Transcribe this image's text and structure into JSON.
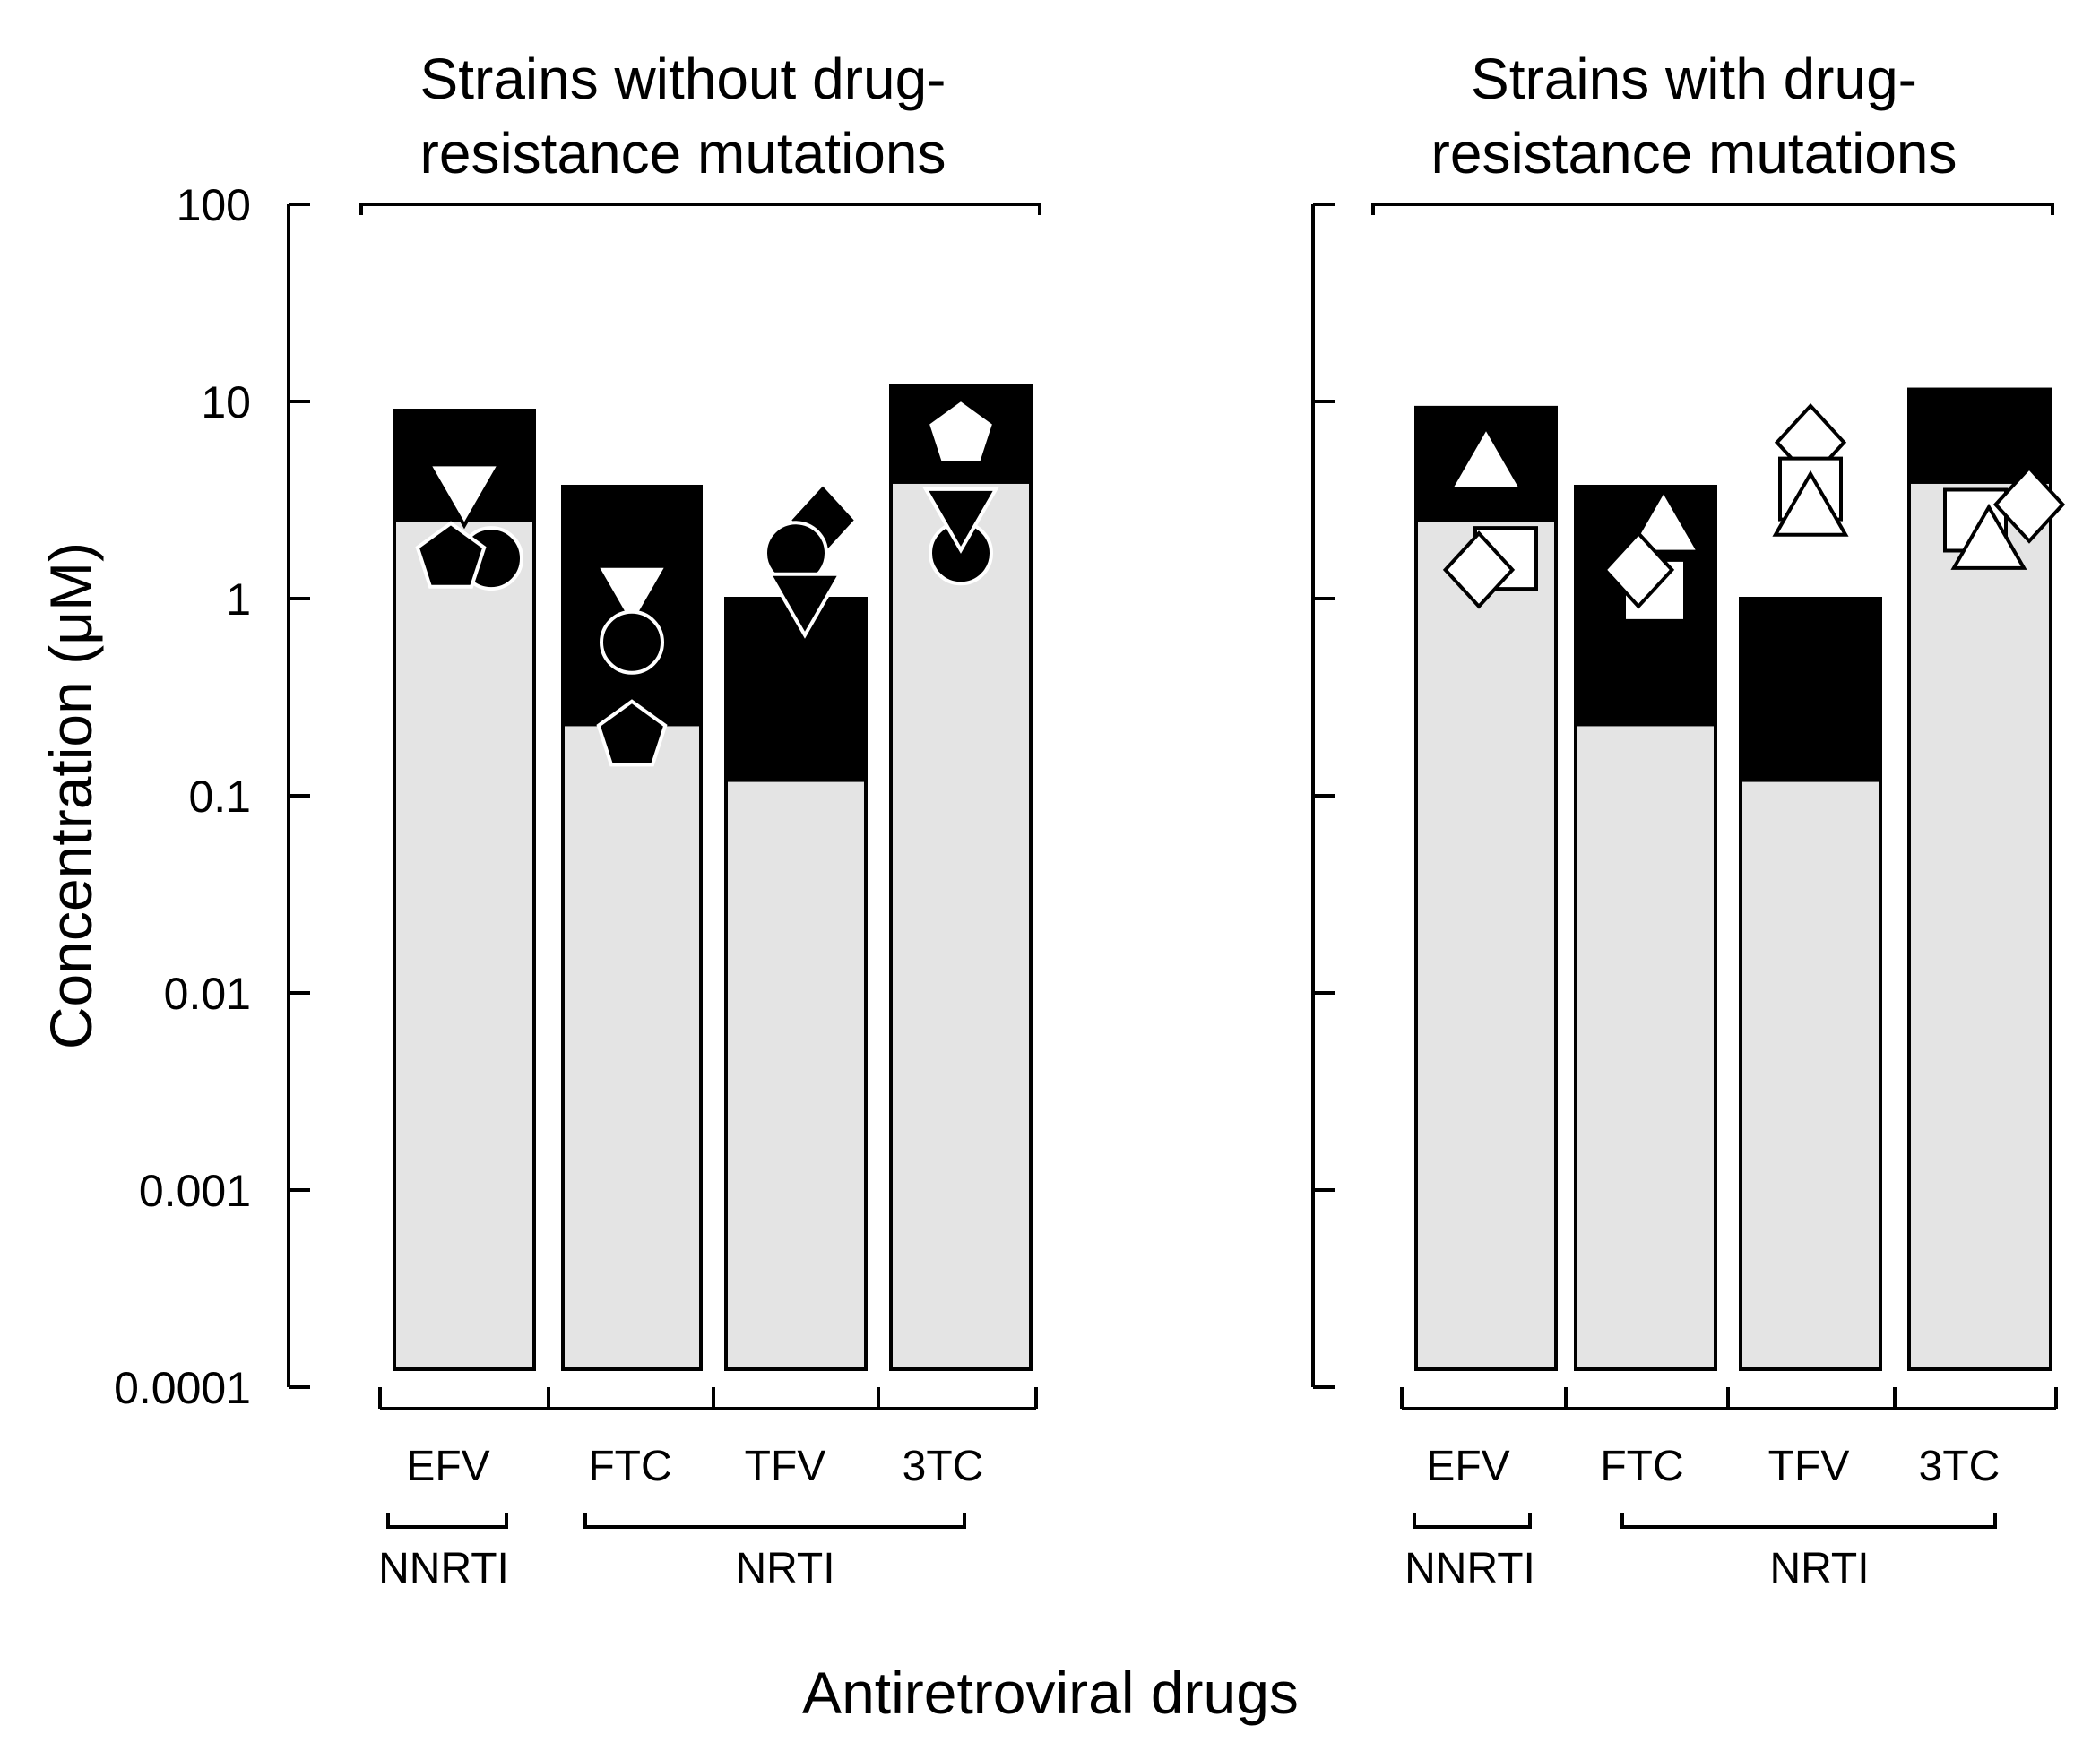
{
  "chart_data": {
    "type": "bar",
    "scale": "log",
    "ylabel": "Concentration (μM)",
    "xlabel": "Antiretroviral drugs",
    "ylim": [
      0.0001,
      100
    ],
    "yticks": [
      {
        "value": 100,
        "label": "100"
      },
      {
        "value": 10,
        "label": "10"
      },
      {
        "value": 1,
        "label": "1"
      },
      {
        "value": 0.1,
        "label": "0.1"
      },
      {
        "value": 0.01,
        "label": "0.01"
      },
      {
        "value": 0.001,
        "label": "0.001"
      },
      {
        "value": 0.0001,
        "label": "0.0001"
      }
    ],
    "colors": {
      "bar_fill": "#e4e4e4",
      "range_fill": "#000000",
      "axis": "#000000",
      "marker_hollow": "#ffffff"
    },
    "panels": [
      {
        "title_line1": "Strains without drug-",
        "title_line2": "resistance mutations",
        "drugs": [
          {
            "label": "EFV",
            "bar_top": 9.0,
            "range_low": 2.5,
            "range_high": 9.0,
            "markers": [
              {
                "shape": "triangle-down",
                "style": "hollow-on-black",
                "value": 3.6
              },
              {
                "shape": "circle",
                "style": "filled",
                "value": 1.6
              },
              {
                "shape": "pentagon",
                "style": "filled",
                "value": 1.6
              }
            ]
          },
          {
            "label": "FTC",
            "bar_top": 3.7,
            "range_low": 0.23,
            "range_high": 3.7,
            "markers": [
              {
                "shape": "triangle-down",
                "style": "hollow-on-black",
                "value": 1.1
              },
              {
                "shape": "circle",
                "style": "outline-on-black",
                "value": 0.6
              },
              {
                "shape": "pentagon",
                "style": "filled",
                "value": 0.2
              }
            ]
          },
          {
            "label": "TFV",
            "bar_top": 1.0,
            "range_low": 0.12,
            "range_high": 1.0,
            "markers": [
              {
                "shape": "diamond",
                "style": "filled",
                "value": 2.5
              },
              {
                "shape": "circle",
                "style": "filled",
                "value": 1.7
              },
              {
                "shape": "triangle-down",
                "style": "filled",
                "value": 1.0
              }
            ]
          },
          {
            "label": "3TC",
            "bar_top": 12.0,
            "range_low": 3.9,
            "range_high": 12.0,
            "markers": [
              {
                "shape": "pentagon",
                "style": "hollow-on-black",
                "value": 6.8
              },
              {
                "shape": "circle",
                "style": "filled",
                "value": 1.7
              },
              {
                "shape": "triangle-down",
                "style": "filled",
                "value": 2.7
              }
            ]
          }
        ],
        "classes": [
          {
            "label": "NNRTI",
            "drugs": [
              "EFV"
            ]
          },
          {
            "label": "NRTI",
            "drugs": [
              "FTC",
              "TFV",
              "3TC"
            ]
          }
        ]
      },
      {
        "title_line1": "Strains with drug-",
        "title_line2": "resistance mutations",
        "drugs": [
          {
            "label": "EFV",
            "bar_top": 9.3,
            "range_low": 2.5,
            "range_high": 9.3,
            "markers": [
              {
                "shape": "triangle-up",
                "style": "hollow",
                "value": 4.8
              },
              {
                "shape": "square",
                "style": "hollow",
                "value": 1.6
              },
              {
                "shape": "diamond",
                "style": "hollow",
                "value": 1.4
              }
            ]
          },
          {
            "label": "FTC",
            "bar_top": 3.7,
            "range_low": 0.23,
            "range_high": 3.7,
            "markers": [
              {
                "shape": "triangle-up",
                "style": "hollow",
                "value": 2.3
              },
              {
                "shape": "square",
                "style": "hollow",
                "value": 1.1
              },
              {
                "shape": "diamond",
                "style": "hollow",
                "value": 1.4
              }
            ]
          },
          {
            "label": "TFV",
            "bar_top": 1.0,
            "range_low": 0.12,
            "range_high": 1.0,
            "markers": [
              {
                "shape": "diamond",
                "style": "hollow",
                "value": 6.2
              },
              {
                "shape": "square",
                "style": "hollow",
                "value": 3.6
              },
              {
                "shape": "triangle-up",
                "style": "hollow",
                "value": 2.8
              }
            ]
          },
          {
            "label": "3TC",
            "bar_top": 11.5,
            "range_low": 3.9,
            "range_high": 11.5,
            "markers": [
              {
                "shape": "square",
                "style": "hollow",
                "value": 2.5
              },
              {
                "shape": "triangle-up",
                "style": "hollow",
                "value": 1.9
              },
              {
                "shape": "diamond",
                "style": "hollow",
                "value": 3.0
              }
            ]
          }
        ],
        "classes": [
          {
            "label": "NNRTI",
            "drugs": [
              "EFV"
            ]
          },
          {
            "label": "NRTI",
            "drugs": [
              "FTC",
              "TFV",
              "3TC"
            ]
          }
        ]
      }
    ]
  }
}
